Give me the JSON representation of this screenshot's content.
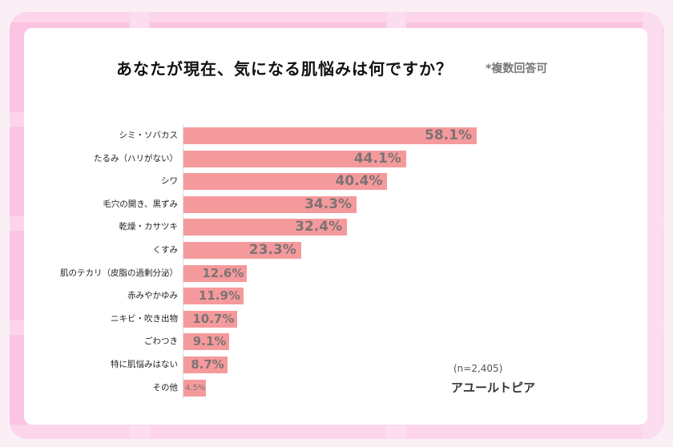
{
  "colors": {
    "bar": "#f59a9c",
    "frame": "#fbc4e2",
    "value_text": "#7d7274"
  },
  "title": "あなたが現在、気になる肌悩みは何ですか？",
  "note": "*複数回答可",
  "sample": "(n=2,405)",
  "brand": "アユールトピア",
  "chart_data": {
    "type": "bar",
    "orientation": "horizontal",
    "title": "あなたが現在、気になる肌悩みは何ですか？",
    "categories": [
      "シミ・ソバカス",
      "たるみ（ハリがない）",
      "シワ",
      "毛穴の開き、黒ずみ",
      "乾燥・カサツキ",
      "くすみ",
      "肌のテカリ（皮脂の過剰分泌）",
      "赤みやかゆみ",
      "ニキビ・吹き出物",
      "ごわつき",
      "特に肌悩みはない",
      "その他"
    ],
    "values": [
      58.1,
      44.1,
      40.4,
      34.3,
      32.4,
      23.3,
      12.6,
      11.9,
      10.7,
      9.1,
      8.7,
      4.5
    ],
    "data_labels": [
      "58.1%",
      "44.1%",
      "40.4%",
      "34.3%",
      "32.4%",
      "23.3%",
      "12.6%",
      "11.9%",
      "10.7%",
      "9.1%",
      "8.7%",
      "4.5%"
    ],
    "unit": "%",
    "grid": false,
    "legend": "none"
  }
}
